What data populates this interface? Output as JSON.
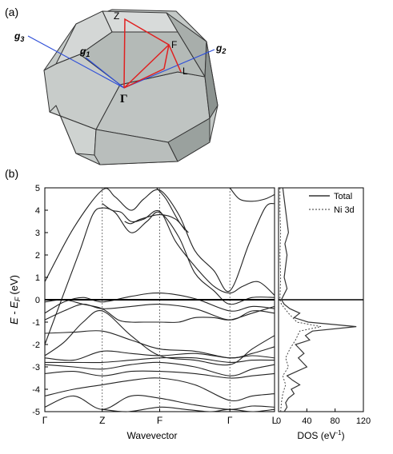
{
  "panel_a": {
    "label": "(a)",
    "points": {
      "z": "Z",
      "f": "F",
      "l": "L",
      "gamma": "Γ"
    },
    "vectors": {
      "g1_base": "g",
      "g1_sub": "1",
      "g2_base": "g",
      "g2_sub": "2",
      "g3_base": "g",
      "g3_sub": "3"
    },
    "colors": {
      "path": "#e02020",
      "vectors": "#3050d8",
      "face_light": "#dcdedd",
      "face_mid": "#c4c9c7",
      "face_dark": "#9aa19e",
      "edge": "#333333"
    }
  },
  "panel_b": {
    "label": "(b)"
  },
  "chart_data": [
    {
      "type": "line",
      "title": "",
      "xlabel": "Wavevector",
      "ylabel_main": "E - E",
      "ylabel_sub": "F",
      "ylabel_unit": "(eV)",
      "ylim": [
        -5,
        5
      ],
      "yticks": [
        "5",
        "4",
        "3",
        "2",
        "1",
        "0",
        "-1",
        "-2",
        "-3",
        "-4",
        "-5"
      ],
      "x_points": [
        "Γ",
        "Z",
        "F",
        "Γ",
        "L"
      ],
      "x_point_positions": [
        0,
        0.9,
        1.8,
        2.9,
        3.6
      ],
      "fermi_level": 0,
      "series": [
        {
          "x": [
            0,
            0.45,
            0.9,
            1.35,
            1.8,
            2.35,
            2.9,
            3.25,
            3.6
          ],
          "y": [
            -4.8,
            -4.3,
            -4.9,
            -4.3,
            -4.4,
            -4.7,
            -4.9,
            -4.75,
            -4.8
          ]
        },
        {
          "x": [
            0,
            0.45,
            0.9,
            1.35,
            1.8,
            2.35,
            2.9,
            3.25,
            3.6
          ],
          "y": [
            -4.3,
            -4.0,
            -3.8,
            -3.6,
            -3.5,
            -3.8,
            -4.5,
            -4.3,
            -4.2
          ]
        },
        {
          "x": [
            0,
            0.45,
            0.9,
            1.35,
            1.8,
            2.35,
            2.9,
            3.25,
            3.6
          ],
          "y": [
            -3.3,
            -3.2,
            -3.4,
            -3.2,
            -3.2,
            -3.3,
            -3.5,
            -3.4,
            -3.3
          ]
        },
        {
          "x": [
            0,
            0.45,
            0.9,
            1.35,
            1.8,
            2.35,
            2.9,
            3.25,
            3.6
          ],
          "y": [
            -2.9,
            -3.0,
            -3.1,
            -2.9,
            -2.8,
            -3.0,
            -3.4,
            -3.1,
            -2.9
          ]
        },
        {
          "x": [
            0,
            0.45,
            0.9,
            1.35,
            1.8,
            2.35,
            2.9,
            3.25,
            3.6
          ],
          "y": [
            -2.8,
            -2.8,
            -2.8,
            -2.7,
            -2.6,
            -2.6,
            -2.8,
            -2.7,
            -2.7
          ]
        },
        {
          "x": [
            0,
            0.45,
            0.9,
            1.35,
            1.8,
            2.35,
            2.9,
            3.25,
            3.6
          ],
          "y": [
            -2.6,
            -2.7,
            -2.3,
            -2.4,
            -2.5,
            -2.4,
            -2.6,
            -2.5,
            -2.6
          ]
        },
        {
          "x": [
            0,
            0.45,
            0.9,
            1.35,
            1.8,
            2.35,
            2.9,
            3.25,
            3.6
          ],
          "y": [
            -1.5,
            -1.45,
            -1.4,
            -1.8,
            -2.2,
            -2.3,
            -2.6,
            -2.4,
            -2.1
          ]
        },
        {
          "x": [
            0,
            0.3,
            0.6,
            0.9,
            1.35,
            1.8,
            2.35,
            2.9,
            3.25,
            3.6
          ],
          "y": [
            -2.5,
            -1.9,
            -1.0,
            -0.5,
            -1.6,
            -2.5,
            -2.7,
            -2.9,
            -2.2,
            -1.6
          ]
        },
        {
          "x": [
            0,
            0.3,
            0.6,
            0.9,
            1.35,
            1.8,
            2.35,
            2.9,
            3.25,
            3.6
          ],
          "y": [
            -0.9,
            -0.5,
            -0.2,
            -0.4,
            -0.3,
            -0.2,
            -0.4,
            -0.9,
            -0.5,
            -0.6
          ]
        },
        {
          "x": [
            0,
            0.3,
            0.6,
            0.9,
            1.35,
            1.8,
            2.35,
            2.9,
            3.25,
            3.6
          ],
          "y": [
            -0.6,
            -0.1,
            0.1,
            -0.1,
            0.15,
            0.3,
            0.05,
            -0.5,
            -0.3,
            -0.4
          ]
        },
        {
          "x": [
            0,
            0.3,
            0.6,
            0.9,
            1.15,
            1.35,
            1.55,
            1.8,
            2.1,
            2.35,
            2.65,
            2.9,
            3.25,
            3.6
          ],
          "y": [
            -0.1,
            0.0,
            -0.2,
            -0.4,
            -0.9,
            -1.0,
            -1.0,
            -1.0,
            -1.0,
            -0.8,
            -0.8,
            -0.9,
            -0.6,
            -0.3
          ]
        },
        {
          "x": [
            0,
            0.3,
            0.55,
            0.75,
            0.9,
            1.1,
            1.35,
            1.6,
            1.8,
            2.1,
            2.35,
            2.65,
            2.9,
            3.25,
            3.6
          ],
          "y": [
            -2.0,
            0.3,
            2.2,
            3.8,
            4.1,
            3.9,
            3.0,
            3.5,
            3.9,
            2.8,
            1.2,
            0.4,
            -0.2,
            0.1,
            0.1
          ]
        },
        {
          "x": [
            0.9,
            1.05,
            1.2,
            1.35,
            1.55,
            1.8,
            2.05,
            2.35,
            2.65,
            2.9,
            3.1,
            3.35,
            3.6
          ],
          "y": [
            4.3,
            4.0,
            3.9,
            3.5,
            3.6,
            3.95,
            2.6,
            1.5,
            0.6,
            0.3,
            0.6,
            0.8,
            0.2
          ]
        },
        {
          "x": [
            0,
            0.45,
            0.9,
            1.1,
            1.35,
            1.55,
            1.8,
            2.1,
            2.35,
            2.65,
            2.9,
            3.2,
            3.45,
            3.6
          ],
          "y": [
            0.8,
            3.2,
            4.9,
            4.6,
            4.0,
            4.5,
            4.9,
            3.8,
            2.2,
            1.3,
            0.4,
            2.5,
            4.1,
            4.3
          ]
        },
        {
          "x": [
            1.25,
            1.35,
            1.5,
            1.8,
            2.05,
            2.2
          ],
          "y": [
            3.5,
            3.4,
            3.6,
            3.8,
            3.6,
            3.1
          ]
        },
        {
          "x": [
            2.9,
            3.05,
            3.25,
            3.45,
            3.6
          ],
          "y": [
            5.0,
            4.5,
            4.4,
            4.5,
            4.7
          ]
        },
        {
          "x": [
            1.75,
            1.9,
            2.1,
            2.25
          ],
          "y": [
            5.0,
            4.5,
            3.5,
            3.0
          ]
        },
        {
          "x": [
            0.9,
            1.3,
            1.8,
            2.2,
            2.6,
            2.9,
            3.25,
            3.6
          ],
          "y": [
            -4.9,
            -5.0,
            -4.8,
            -4.9,
            -5.0,
            -4.9,
            -5.0,
            -4.9
          ]
        }
      ]
    },
    {
      "type": "area",
      "xlabel": "DOS (eV",
      "xlabel_sup": "-1",
      "xlabel_close": ")",
      "xlim": [
        0,
        120
      ],
      "xticks": [
        "0",
        "40",
        "80",
        "120"
      ],
      "tick_extra": "0",
      "ylim": [
        -5,
        5
      ],
      "series": [
        {
          "name": "Total",
          "y": [
            -5,
            -4.8,
            -4.6,
            -4.4,
            -4.2,
            -4.0,
            -3.8,
            -3.6,
            -3.4,
            -3.2,
            -3.0,
            -2.8,
            -2.6,
            -2.4,
            -2.2,
            -2.0,
            -1.8,
            -1.6,
            -1.4,
            -1.2,
            -1.0,
            -0.8,
            -0.6,
            -0.4,
            -0.2,
            0.0,
            0.5,
            1.0,
            1.5,
            2.0,
            2.5,
            3.0,
            3.5,
            4.0,
            4.5,
            5.0
          ],
          "x": [
            8,
            12,
            10,
            14,
            22,
            18,
            30,
            20,
            12,
            26,
            40,
            34,
            28,
            36,
            30,
            24,
            44,
            38,
            48,
            110,
            42,
            22,
            30,
            16,
            8,
            4,
            12,
            8,
            10,
            12,
            9,
            14,
            12,
            10,
            8,
            6
          ]
        },
        {
          "name": "Ni 3d",
          "y": [
            -5,
            -4.6,
            -4.2,
            -3.8,
            -3.4,
            -3.0,
            -2.6,
            -2.2,
            -1.8,
            -1.4,
            -1.2,
            -1.0,
            -0.6,
            -0.2,
            0.0,
            1.0,
            2.0,
            3.0,
            4.0,
            5.0
          ],
          "x": [
            3,
            4,
            6,
            10,
            6,
            14,
            10,
            16,
            24,
            30,
            60,
            26,
            14,
            4,
            2,
            3,
            2,
            3,
            2,
            2
          ]
        }
      ]
    }
  ]
}
